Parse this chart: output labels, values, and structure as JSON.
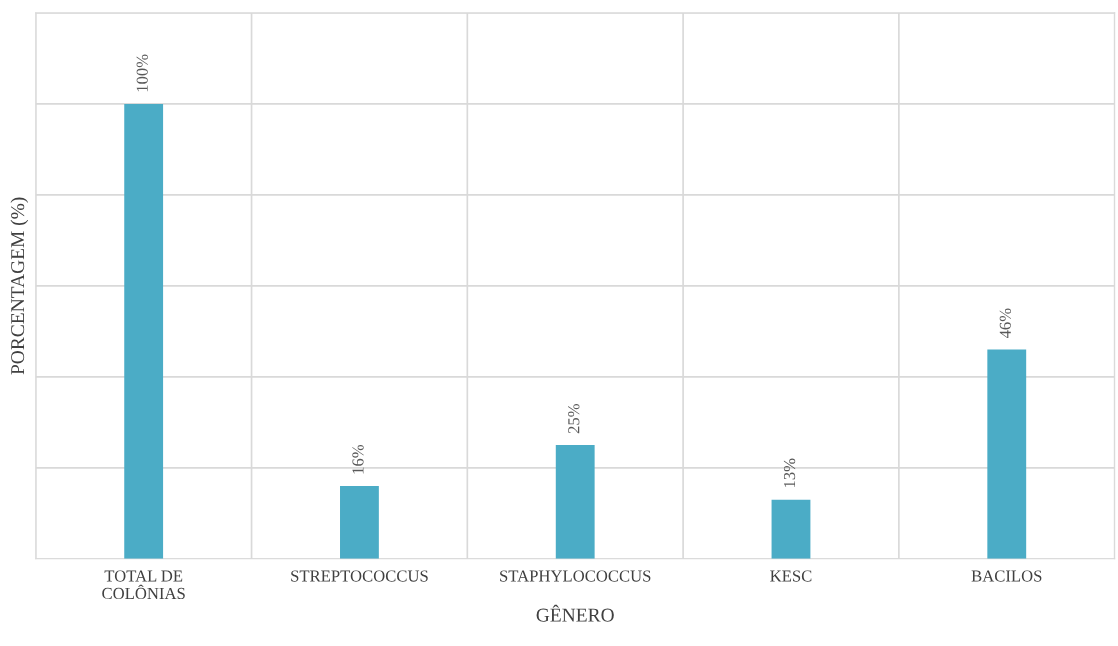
{
  "chart_data": {
    "type": "bar",
    "xlabel": "GÊNERO",
    "ylabel": "PORCENTAGEM (%)",
    "categories": [
      "TOTAL DE\nCOLÔNIAS",
      "STREPTOCOCCUS",
      "STAPHYLOCOCCUS",
      "KESC",
      "BACILOS"
    ],
    "values": [
      100,
      16,
      25,
      13,
      46
    ],
    "value_labels": [
      "100%",
      "16%",
      "25%",
      "13%",
      "46%"
    ],
    "color": "#4bacc6",
    "ylim": [
      0,
      120
    ],
    "yticks": [
      {
        "value": 0,
        "label": null
      },
      {
        "value": 20,
        "label": null
      },
      {
        "value": 40,
        "label": null
      },
      {
        "value": 60,
        "label": null
      },
      {
        "value": 80,
        "label": null
      },
      {
        "value": 100,
        "label": null
      },
      {
        "value": 120,
        "label": null
      }
    ],
    "grid": true
  }
}
